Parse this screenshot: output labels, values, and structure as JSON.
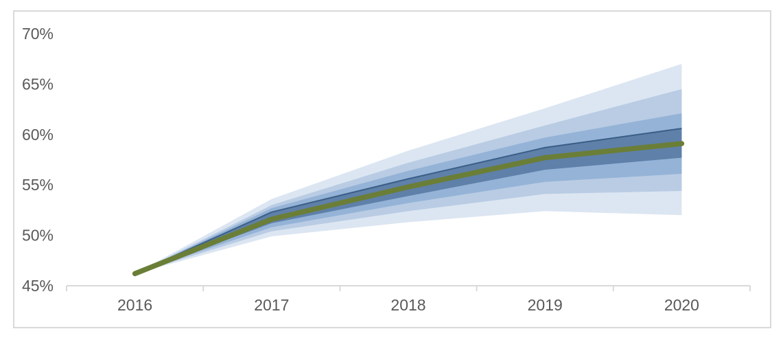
{
  "chart": {
    "title": "",
    "frame": {
      "border_color": "#d9d9d9",
      "background": "#ffffff"
    },
    "axis_style": {
      "line_color": "#d9d9d9",
      "tick_color": "#d9d9d9",
      "label_color": "#595959",
      "label_font_size": 23
    }
  },
  "chart_data": {
    "type": "area",
    "subtype": "fan-chart-with-center-line",
    "title": "",
    "xlabel": "",
    "ylabel": "",
    "x_labels": [
      "2016",
      "2017",
      "2018",
      "2019",
      "2020"
    ],
    "y_tick_labels": [
      "45%",
      "50%",
      "55%",
      "60%",
      "65%",
      "70%"
    ],
    "ylim": [
      45,
      70
    ],
    "y_tick_step": 5,
    "grid": false,
    "legend": false,
    "center_line": {
      "name": "central-projection",
      "color": "#6b7e37",
      "stroke_width": 7.5,
      "values": [
        46.2,
        51.6,
        54.8,
        57.7,
        59.1
      ]
    },
    "edge_line": {
      "name": "inner-band-upper-edge",
      "color": "#3a5e86",
      "stroke_width": 2,
      "values": [
        46.2,
        52.3,
        55.6,
        58.7,
        60.6
      ]
    },
    "bands": [
      {
        "name": "outermost-band",
        "color": "#dce6f2",
        "upper": [
          46.2,
          53.6,
          58.4,
          62.6,
          67.0
        ],
        "lower": [
          46.2,
          49.9,
          51.3,
          52.4,
          52.0
        ]
      },
      {
        "name": "outer-band",
        "color": "#b9cce4",
        "upper": [
          46.2,
          53.0,
          57.2,
          60.9,
          64.5
        ],
        "lower": [
          46.2,
          50.4,
          52.4,
          54.1,
          54.4
        ]
      },
      {
        "name": "middle-band",
        "color": "#95b3d7",
        "upper": [
          46.2,
          52.7,
          56.4,
          59.7,
          62.1
        ],
        "lower": [
          46.2,
          50.8,
          53.2,
          55.3,
          56.1
        ]
      },
      {
        "name": "inner-band",
        "color": "#5e80a9",
        "upper": [
          46.2,
          52.3,
          55.6,
          58.7,
          60.6
        ],
        "lower": [
          46.2,
          51.2,
          53.9,
          56.5,
          57.7
        ]
      }
    ]
  }
}
